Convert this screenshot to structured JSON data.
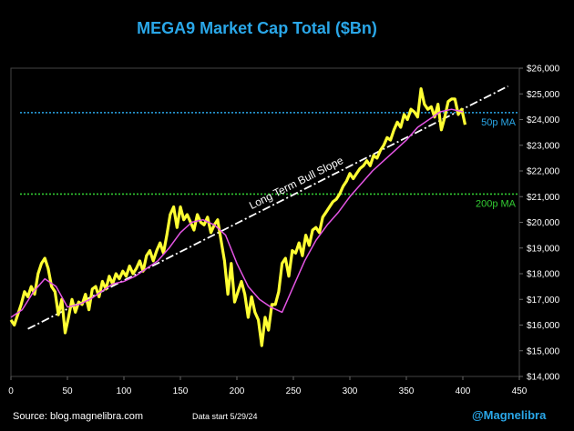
{
  "chart_data": {
    "type": "line",
    "title": "MEGA9 Market Cap Total ($Bn)",
    "xlim": [
      0,
      450
    ],
    "ylim": [
      14000,
      26000
    ],
    "x_ticks": [
      0,
      50,
      100,
      150,
      200,
      250,
      300,
      350,
      400,
      450
    ],
    "y_ticks": [
      14000,
      15000,
      16000,
      17000,
      18000,
      19000,
      20000,
      21000,
      22000,
      23000,
      24000,
      25000,
      26000
    ],
    "y_tick_labels": [
      "$14,000",
      "$15,000",
      "$16,000",
      "$17,000",
      "$18,000",
      "$19,000",
      "$20,000",
      "$21,000",
      "$22,000",
      "$23,000",
      "$24,000",
      "$25,000",
      "$26,000"
    ],
    "grid": false,
    "series": [
      {
        "name": "",
        "color": "#ffff33",
        "x": [
          0,
          3,
          6,
          9,
          12,
          15,
          18,
          21,
          24,
          27,
          30,
          33,
          36,
          39,
          42,
          45,
          48,
          51,
          54,
          57,
          60,
          63,
          66,
          69,
          72,
          75,
          78,
          81,
          84,
          87,
          90,
          93,
          96,
          99,
          102,
          105,
          108,
          111,
          114,
          117,
          120,
          123,
          126,
          129,
          132,
          135,
          138,
          141,
          144,
          147,
          150,
          153,
          156,
          159,
          162,
          165,
          168,
          171,
          174,
          177,
          180,
          183,
          186,
          189,
          192,
          195,
          198,
          201,
          204,
          207,
          210,
          213,
          216,
          219,
          222,
          225,
          228,
          231,
          234,
          237,
          240,
          243,
          246,
          249,
          252,
          255,
          258,
          261,
          264,
          267,
          270,
          273,
          276,
          279,
          282,
          285,
          288,
          291,
          294,
          297,
          300,
          303,
          306,
          309,
          312,
          315,
          318,
          321,
          324,
          327,
          330,
          333,
          336,
          339,
          342,
          345,
          348,
          351,
          354,
          357,
          360,
          363,
          366,
          369,
          372,
          375,
          378,
          381,
          384,
          387,
          390,
          393,
          396,
          399,
          402
        ],
        "values": [
          16200,
          16000,
          16400,
          16800,
          17300,
          17100,
          17500,
          17200,
          18000,
          18400,
          18600,
          18200,
          17500,
          17300,
          16400,
          17000,
          15700,
          16300,
          17000,
          16500,
          16900,
          16800,
          17200,
          16600,
          17400,
          17500,
          17100,
          17700,
          17400,
          17900,
          17600,
          18000,
          17800,
          18100,
          17900,
          18300,
          18000,
          18200,
          18500,
          18100,
          18700,
          18900,
          18500,
          18900,
          19200,
          18800,
          19500,
          20300,
          20600,
          19800,
          20600,
          20100,
          20300,
          20000,
          19700,
          20300,
          20000,
          19900,
          20200,
          19600,
          19900,
          20100,
          19300,
          18500,
          17200,
          18400,
          16900,
          17300,
          17700,
          17200,
          16300,
          17100,
          16500,
          16200,
          15200,
          16300,
          15800,
          16800,
          16800,
          17300,
          18400,
          18600,
          17900,
          18900,
          18800,
          19200,
          18700,
          19500,
          19100,
          19700,
          19800,
          19600,
          20200,
          20400,
          20600,
          20800,
          20900,
          21100,
          21400,
          21600,
          21900,
          21700,
          21900,
          22100,
          22200,
          22400,
          22200,
          22600,
          22500,
          22800,
          23000,
          23300,
          23200,
          23600,
          23900,
          23700,
          24200,
          24000,
          24400,
          24300,
          24100,
          25200,
          24600,
          24400,
          24500,
          24100,
          24600,
          23600,
          24100,
          24700,
          24800,
          24800,
          24200,
          24400,
          23800
        ]
      },
      {
        "name": "",
        "color": "#e455e4",
        "x": [
          0,
          10,
          20,
          30,
          40,
          50,
          60,
          70,
          80,
          90,
          100,
          110,
          120,
          130,
          140,
          150,
          160,
          170,
          180,
          190,
          200,
          210,
          220,
          230,
          240,
          250,
          260,
          270,
          280,
          290,
          300,
          310,
          320,
          330,
          340,
          350,
          360,
          370,
          380,
          390,
          400
        ],
        "values": [
          16300,
          16600,
          17300,
          17800,
          17500,
          16700,
          16800,
          17000,
          17300,
          17600,
          17700,
          17900,
          18200,
          18500,
          19000,
          19600,
          20000,
          20100,
          19900,
          19500,
          18400,
          17500,
          17000,
          16700,
          16500,
          17500,
          18500,
          19300,
          19900,
          20400,
          21000,
          21500,
          22000,
          22400,
          22800,
          23200,
          23700,
          24000,
          24300,
          24400,
          24300
        ]
      }
    ],
    "annotations": [
      {
        "type": "hline",
        "y": 24270,
        "color": "#2aa7e8",
        "label": "50p MA"
      },
      {
        "type": "hline",
        "y": 21100,
        "color": "#33cc33",
        "label": "200p MA"
      },
      {
        "type": "trendline",
        "x": [
          15,
          440
        ],
        "y": [
          15850,
          25300
        ],
        "color": "#ffffff",
        "label": "Long Term Bull Slope"
      }
    ],
    "footer": {
      "source": "Source: blog.magnelibra.com",
      "data_start": "Data start 5/29/24",
      "handle": "@Magnelibra"
    }
  }
}
